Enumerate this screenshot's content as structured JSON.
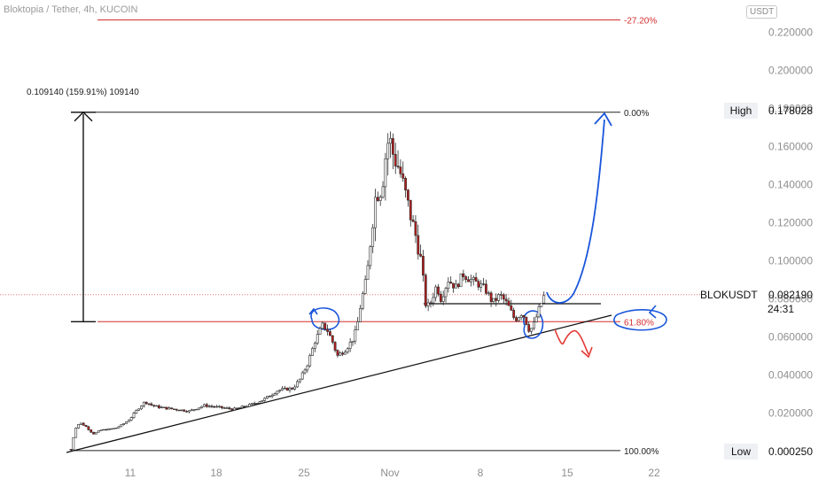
{
  "header": {
    "title": "Bloktopia / Tether, 4h, KUCOIN",
    "currency": "USDT"
  },
  "chart_data": {
    "type": "candlestick",
    "symbol": "BLOKUSDT",
    "ylim": [
      0,
      0.23
    ],
    "y_ticks": [
      "0.220000",
      "0.200000",
      "0.180000",
      "0.160000",
      "0.140000",
      "0.120000",
      "0.100000",
      "0.080000",
      "0.060000",
      "0.040000",
      "0.020000"
    ],
    "x_ticks": [
      "11",
      "18",
      "25",
      "Nov",
      "8",
      "15",
      "22"
    ],
    "high_label": "High",
    "high_value": "0.178028",
    "low_label": "Low",
    "low_value": "0.000250",
    "last_price": "0.082190",
    "countdown": "24:31",
    "fib_levels": [
      {
        "label": "-27.20%",
        "price": 0.2265
      },
      {
        "label": "0.00%",
        "price": 0.178
      },
      {
        "label": "61.80%",
        "price": 0.068
      },
      {
        "label": "100.00%",
        "price": 0.0003
      }
    ],
    "measure_note": "0.109140 (159.91%) 109140",
    "close_path": [
      [
        0,
        0.001
      ],
      [
        0.3,
        0.012
      ],
      [
        0.6,
        0.015
      ],
      [
        1,
        0.013
      ],
      [
        1.5,
        0.009
      ],
      [
        2,
        0.011
      ],
      [
        3,
        0.012
      ],
      [
        3.5,
        0.014
      ],
      [
        4,
        0.017
      ],
      [
        4.5,
        0.022
      ],
      [
        5,
        0.026
      ],
      [
        5.5,
        0.024
      ],
      [
        6,
        0.023
      ],
      [
        7,
        0.022
      ],
      [
        8,
        0.021
      ],
      [
        9,
        0.024
      ],
      [
        10,
        0.023
      ],
      [
        11,
        0.022
      ],
      [
        12,
        0.024
      ],
      [
        13,
        0.027
      ],
      [
        14,
        0.032
      ],
      [
        15,
        0.033
      ],
      [
        15.5,
        0.038
      ],
      [
        16,
        0.046
      ],
      [
        16.5,
        0.058
      ],
      [
        17,
        0.066
      ],
      [
        17.3,
        0.064
      ],
      [
        17.7,
        0.057
      ],
      [
        18,
        0.05
      ],
      [
        18.5,
        0.053
      ],
      [
        19,
        0.058
      ],
      [
        19.3,
        0.064
      ],
      [
        19.6,
        0.078
      ],
      [
        20,
        0.092
      ],
      [
        20.3,
        0.115
      ],
      [
        20.6,
        0.135
      ],
      [
        21,
        0.138
      ],
      [
        21.3,
        0.158
      ],
      [
        21.5,
        0.165
      ],
      [
        21.8,
        0.155
      ],
      [
        22.2,
        0.148
      ],
      [
        22.6,
        0.135
      ],
      [
        23,
        0.122
      ],
      [
        23.4,
        0.11
      ],
      [
        23.7,
        0.098
      ],
      [
        24,
        0.075
      ],
      [
        24.3,
        0.078
      ],
      [
        24.7,
        0.087
      ],
      [
        25,
        0.08
      ],
      [
        25.5,
        0.09
      ],
      [
        26,
        0.086
      ],
      [
        26.5,
        0.093
      ],
      [
        27,
        0.09
      ],
      [
        27.5,
        0.088
      ],
      [
        28,
        0.085
      ],
      [
        28.5,
        0.078
      ],
      [
        29,
        0.082
      ],
      [
        29.5,
        0.077
      ],
      [
        30,
        0.069
      ],
      [
        30.5,
        0.073
      ],
      [
        31,
        0.063
      ],
      [
        31.3,
        0.067
      ],
      [
        31.6,
        0.074
      ],
      [
        32,
        0.082
      ]
    ]
  },
  "colors": {
    "up": "#26a69a",
    "down": "#b71c1c",
    "fib": "#d32f2f",
    "trend": "#111111",
    "blue_note": "#1a56db",
    "red_note": "#e53935"
  }
}
